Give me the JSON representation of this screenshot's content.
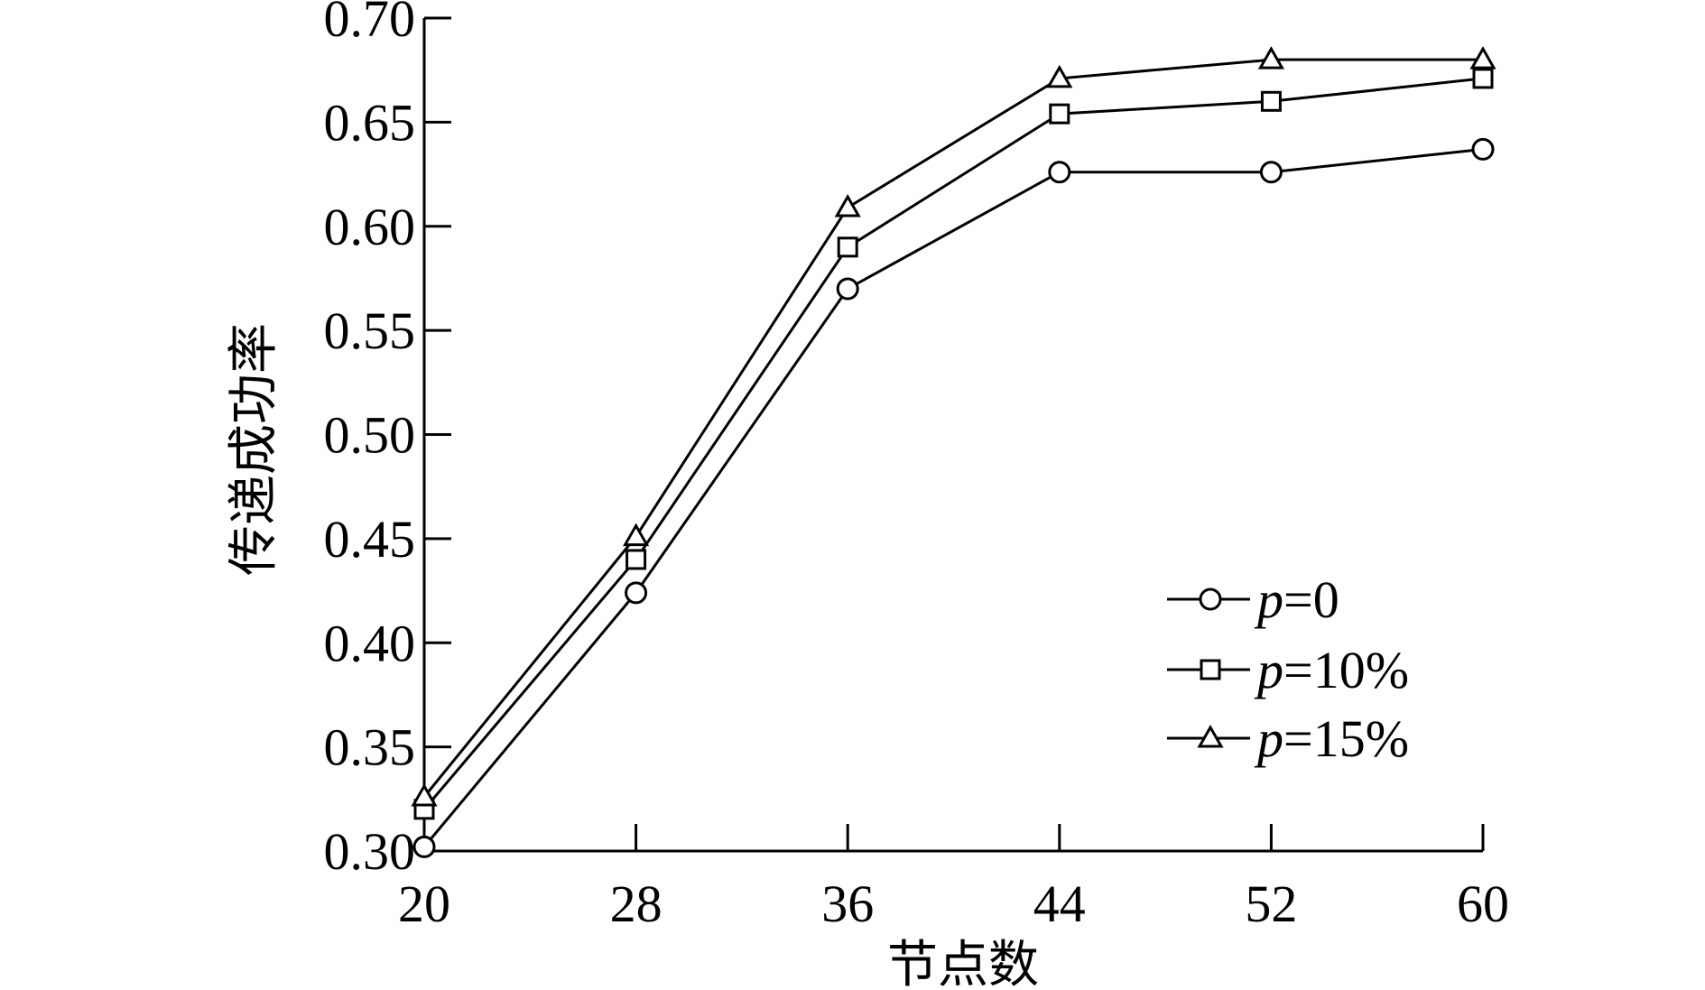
{
  "chart_data": {
    "type": "line",
    "xlabel": "节点数",
    "ylabel": "传递成功率",
    "x": [
      20,
      28,
      36,
      44,
      52,
      60
    ],
    "x_tick_labels": [
      "20",
      "28",
      "36",
      "44",
      "52",
      "60"
    ],
    "ylim": [
      0.3,
      0.7
    ],
    "y_ticks": [
      0.3,
      0.35,
      0.4,
      0.45,
      0.5,
      0.55,
      0.6,
      0.65,
      0.7
    ],
    "y_tick_labels": [
      "0.30",
      "0.35",
      "0.40",
      "0.45",
      "0.50",
      "0.55",
      "0.60",
      "0.65",
      "0.70"
    ],
    "grid": false,
    "legend_position": "bottom-right",
    "series": [
      {
        "name": "p=0",
        "name_var": "p",
        "name_value": "=0",
        "marker": "circle",
        "color": "#000000",
        "values": [
          0.302,
          0.424,
          0.57,
          0.626,
          0.626,
          0.637
        ]
      },
      {
        "name": "p=10%",
        "name_var": "p",
        "name_value": "=10%",
        "marker": "square",
        "color": "#000000",
        "values": [
          0.32,
          0.44,
          0.59,
          0.654,
          0.66,
          0.671
        ]
      },
      {
        "name": "p=15%",
        "name_var": "p",
        "name_value": "=15%",
        "marker": "triangle",
        "color": "#000000",
        "values": [
          0.326,
          0.451,
          0.609,
          0.671,
          0.68,
          0.68
        ]
      }
    ]
  }
}
